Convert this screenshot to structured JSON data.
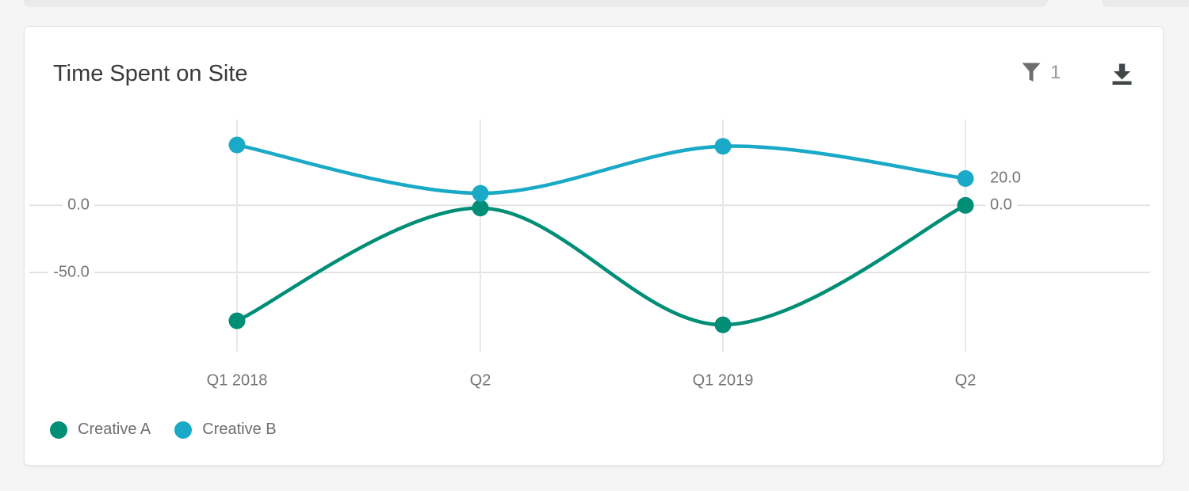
{
  "card": {
    "title": "Time Spent on Site",
    "toolbar": {
      "filter_count": "1"
    }
  },
  "chart_data": {
    "type": "line",
    "title": "Time Spent on Site",
    "categories": [
      "Q1 2018",
      "Q2",
      "Q1 2019",
      "Q2"
    ],
    "series": [
      {
        "name": "Creative A",
        "color": "#008e76",
        "values": [
          -86,
          -2,
          -89,
          0
        ],
        "end_label": "0.0"
      },
      {
        "name": "Creative B",
        "color": "#1aa9c6",
        "values": [
          45,
          9,
          44,
          20
        ],
        "end_label": "20.0"
      }
    ],
    "y_axis": {
      "ticks": [
        "0.0",
        "-50.0"
      ],
      "tick_values": [
        0,
        -50
      ],
      "range": [
        -110,
        65
      ]
    },
    "grid": true,
    "legend_position": "bottom-left",
    "style": {
      "grid_color_h": "#e3e3e3",
      "grid_color_v": "#e8e8e8",
      "axis_text_color": "#757575",
      "line_width": 4.5,
      "point_radius": 10.5
    }
  }
}
